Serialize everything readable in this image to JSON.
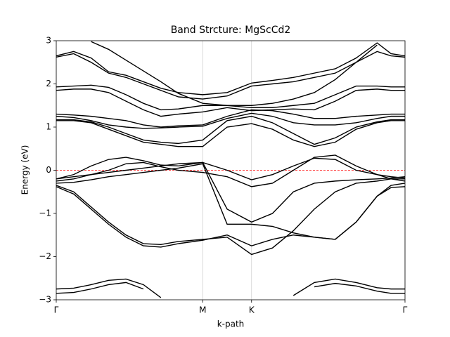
{
  "chart_data": {
    "type": "line",
    "title": "Band Strcture: MgScCd2",
    "x_label": "k-path",
    "y_label": "Energy (eV)",
    "x": [
      0,
      0.05,
      0.1,
      0.15,
      0.2,
      0.25,
      0.3,
      0.35,
      0.42,
      0.49,
      0.56,
      0.62,
      0.68,
      0.74,
      0.8,
      0.86,
      0.92,
      0.96,
      1.0
    ],
    "xlim": [
      0,
      1
    ],
    "xticks": [
      {
        "value": 0,
        "label": "Γ"
      },
      {
        "value": 0.42,
        "label": "M"
      },
      {
        "value": 0.56,
        "label": "K"
      },
      {
        "value": 1.0,
        "label": "Γ"
      }
    ],
    "ylim": [
      -3,
      3
    ],
    "yticks": [
      {
        "value": -3,
        "label": "−3"
      },
      {
        "value": -2,
        "label": "−2"
      },
      {
        "value": -1,
        "label": "−1"
      },
      0,
      1,
      2,
      3
    ],
    "xgrid": true,
    "grid_color": "#d0d0d0",
    "hline": {
      "value": 0,
      "color": "#ff0000",
      "dashed": true
    },
    "series": [
      {
        "color": "#000000",
        "values": [
          -2.75,
          -2.73,
          -2.65,
          -2.55,
          -2.52,
          -2.65,
          -2.95,
          null,
          null,
          null,
          null,
          null,
          -2.9,
          -2.6,
          -2.52,
          -2.6,
          -2.72,
          -2.75,
          -2.75
        ]
      },
      {
        "color": "#000000",
        "values": [
          -2.85,
          -2.83,
          -2.75,
          -2.65,
          -2.6,
          -2.75,
          null,
          null,
          null,
          null,
          null,
          null,
          null,
          -2.7,
          -2.62,
          -2.68,
          -2.8,
          -2.85,
          -2.85
        ]
      },
      {
        "color": "#000000",
        "values": [
          -0.35,
          -0.5,
          -0.85,
          -1.2,
          -1.5,
          -1.7,
          -1.72,
          -1.65,
          -1.6,
          -1.55,
          -1.95,
          -1.8,
          -1.4,
          -0.9,
          -0.5,
          -0.3,
          -0.25,
          -0.2,
          -0.2
        ]
      },
      {
        "color": "#000000",
        "values": [
          -0.38,
          -0.55,
          -0.9,
          -1.25,
          -1.55,
          -1.75,
          -1.78,
          -1.7,
          -1.62,
          -1.5,
          -1.75,
          -1.6,
          -1.5,
          -1.55,
          -1.6,
          -1.2,
          -0.6,
          -0.4,
          -0.38
        ]
      },
      {
        "color": "#000000",
        "values": [
          -0.3,
          -0.28,
          -0.22,
          -0.15,
          -0.1,
          -0.05,
          0.0,
          0.05,
          0.15,
          -1.25,
          -1.25,
          -1.3,
          -1.45,
          -1.55,
          -1.6,
          -1.2,
          -0.6,
          -0.35,
          -0.3
        ]
      },
      {
        "color": "#000000",
        "values": [
          -0.2,
          -0.1,
          0.1,
          0.25,
          0.3,
          0.22,
          0.12,
          0.1,
          0.18,
          -0.9,
          -1.2,
          -1.0,
          -0.5,
          -0.3,
          -0.25,
          -0.22,
          -0.2,
          -0.18,
          -0.15
        ]
      },
      {
        "color": "#000000",
        "values": [
          -0.25,
          -0.2,
          -0.1,
          0.0,
          0.15,
          0.18,
          0.08,
          0.0,
          -0.05,
          -0.15,
          -0.38,
          -0.3,
          0.0,
          0.3,
          0.35,
          0.1,
          -0.1,
          -0.2,
          -0.25
        ]
      },
      {
        "color": "#000000",
        "values": [
          -0.2,
          -0.15,
          -0.1,
          -0.05,
          0.0,
          0.05,
          0.1,
          0.15,
          0.18,
          0.0,
          -0.22,
          -0.1,
          0.1,
          0.28,
          0.25,
          0.0,
          -0.1,
          -0.15,
          -0.18
        ]
      },
      {
        "color": "#000000",
        "values": [
          1.15,
          1.15,
          1.1,
          0.95,
          0.8,
          0.65,
          0.6,
          0.55,
          0.55,
          1.0,
          1.08,
          0.95,
          0.7,
          0.55,
          0.65,
          0.95,
          1.1,
          1.15,
          1.15
        ]
      },
      {
        "color": "#000000",
        "values": [
          1.17,
          1.17,
          1.12,
          1.0,
          0.85,
          0.7,
          0.65,
          0.62,
          0.7,
          1.15,
          1.25,
          1.1,
          0.85,
          0.6,
          0.75,
          1.0,
          1.12,
          1.17,
          1.17
        ]
      },
      {
        "color": "#000000",
        "values": [
          1.25,
          1.22,
          1.15,
          1.05,
          1.0,
          0.97,
          0.98,
          1.0,
          1.02,
          1.2,
          1.32,
          1.25,
          1.1,
          1.05,
          1.05,
          1.1,
          1.2,
          1.25,
          1.25
        ]
      },
      {
        "color": "#000000",
        "values": [
          1.3,
          1.28,
          1.25,
          1.2,
          1.15,
          1.05,
          1.0,
          1.03,
          1.05,
          1.25,
          1.4,
          1.38,
          1.3,
          1.2,
          1.2,
          1.25,
          1.28,
          1.3,
          1.3
        ]
      },
      {
        "color": "#000000",
        "values": [
          1.85,
          1.88,
          1.88,
          1.8,
          1.6,
          1.4,
          1.25,
          1.3,
          1.35,
          1.45,
          1.38,
          1.4,
          1.42,
          1.4,
          1.6,
          1.85,
          1.88,
          1.85,
          1.85
        ]
      },
      {
        "color": "#000000",
        "values": [
          1.93,
          1.95,
          1.97,
          1.92,
          1.75,
          1.55,
          1.4,
          1.42,
          1.5,
          1.5,
          1.45,
          1.45,
          1.5,
          1.55,
          1.75,
          1.95,
          1.95,
          1.93,
          1.93
        ]
      },
      {
        "color": "#000000",
        "values": [
          2.62,
          2.7,
          2.5,
          2.25,
          2.15,
          2.0,
          1.85,
          1.7,
          1.65,
          1.72,
          1.95,
          2.0,
          2.05,
          2.15,
          2.25,
          2.5,
          2.75,
          2.65,
          2.62
        ]
      },
      {
        "color": "#000000",
        "values": [
          2.65,
          2.75,
          2.6,
          2.28,
          2.2,
          2.05,
          1.9,
          1.8,
          1.75,
          1.8,
          2.02,
          2.08,
          2.15,
          2.25,
          2.35,
          2.6,
          2.95,
          2.7,
          2.65
        ]
      },
      {
        "color": "#000000",
        "values": [
          null,
          null,
          2.98,
          2.8,
          2.55,
          2.3,
          2.05,
          1.78,
          1.55,
          1.5,
          1.5,
          1.55,
          1.65,
          1.8,
          2.1,
          2.5,
          2.9,
          null,
          null
        ]
      }
    ]
  }
}
